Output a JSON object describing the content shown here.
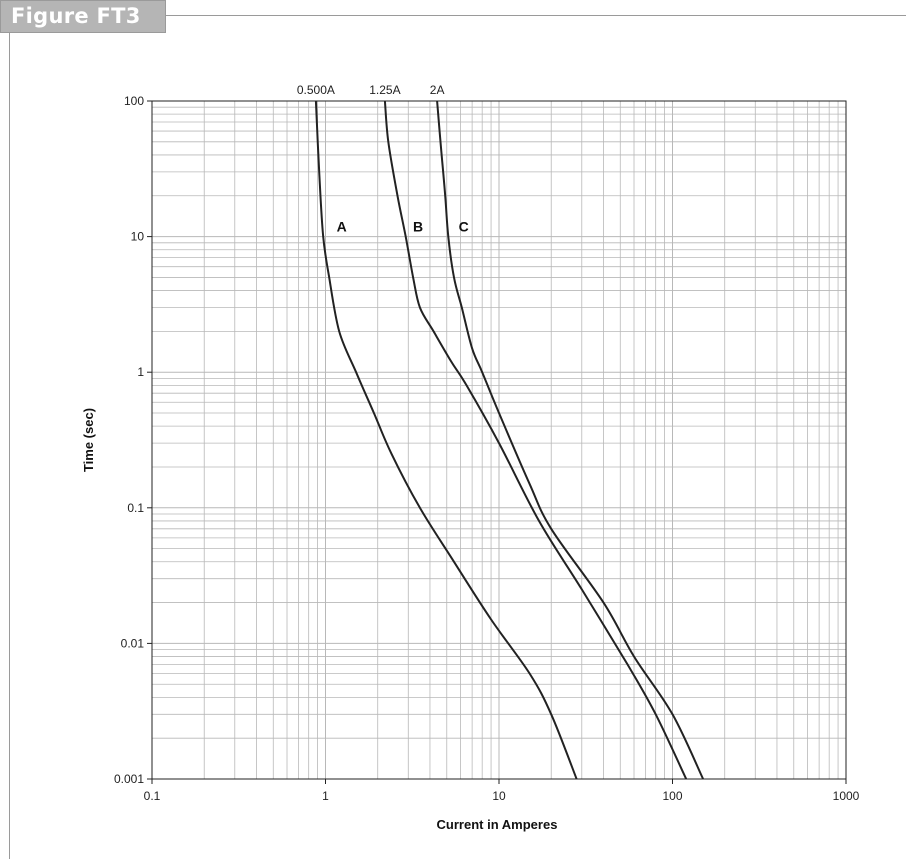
{
  "figure_label": "Figure FT3",
  "colors": {
    "tab_fill": "#b5b5b5",
    "rule": "#9a9a9a",
    "grid": "#b8b8b8",
    "curve": "#222222"
  },
  "chart_data": {
    "type": "line",
    "title": "",
    "xlabel": "Current in Amperes",
    "ylabel": "Time (sec)",
    "x_scale": "log",
    "y_scale": "log",
    "xlim": [
      0.1,
      1000
    ],
    "ylim": [
      0.001,
      100
    ],
    "grid": true,
    "x_ticks": [
      {
        "value": 0.1,
        "label": "0.1"
      },
      {
        "value": 1,
        "label": "1"
      },
      {
        "value": 10,
        "label": "10"
      },
      {
        "value": 100,
        "label": "100"
      },
      {
        "value": 1000,
        "label": "1000"
      }
    ],
    "y_ticks": [
      {
        "value": 100,
        "label": "100"
      },
      {
        "value": 10,
        "label": "10"
      },
      {
        "value": 1,
        "label": "1"
      },
      {
        "value": 0.1,
        "label": "0.1"
      },
      {
        "value": 0.01,
        "label": "0.01"
      },
      {
        "value": 0.001,
        "label": "0.001"
      }
    ],
    "series": [
      {
        "name": "A",
        "rating": "0.500A",
        "label_at": [
          1.07,
          10
        ],
        "points": [
          [
            0.88,
            100
          ],
          [
            0.92,
            30
          ],
          [
            0.97,
            10
          ],
          [
            1.05,
            5
          ],
          [
            1.2,
            2
          ],
          [
            1.5,
            1
          ],
          [
            1.9,
            0.5
          ],
          [
            2.4,
            0.25
          ],
          [
            3.5,
            0.1
          ],
          [
            5.5,
            0.04
          ],
          [
            9,
            0.015
          ],
          [
            15,
            0.006
          ],
          [
            20,
            0.003
          ],
          [
            28,
            0.001
          ]
        ]
      },
      {
        "name": "B",
        "rating": "1.25A",
        "label_at": [
          2.95,
          10
        ],
        "points": [
          [
            2.2,
            100
          ],
          [
            2.3,
            50
          ],
          [
            2.6,
            20
          ],
          [
            2.9,
            10
          ],
          [
            3.2,
            5
          ],
          [
            3.5,
            3
          ],
          [
            4.2,
            2
          ],
          [
            5.3,
            1.2
          ],
          [
            6.5,
            0.8
          ],
          [
            10,
            0.3
          ],
          [
            17,
            0.08
          ],
          [
            30,
            0.025
          ],
          [
            55,
            0.007
          ],
          [
            80,
            0.003
          ],
          [
            120,
            0.001
          ]
        ]
      },
      {
        "name": "C",
        "rating": "2A",
        "label_at": [
          5.4,
          10
        ],
        "points": [
          [
            4.4,
            100
          ],
          [
            4.6,
            50
          ],
          [
            4.9,
            20
          ],
          [
            5.1,
            10
          ],
          [
            5.5,
            5
          ],
          [
            6.1,
            3
          ],
          [
            7,
            1.5
          ],
          [
            8,
            1
          ],
          [
            10,
            0.5
          ],
          [
            15,
            0.15
          ],
          [
            20,
            0.07
          ],
          [
            40,
            0.02
          ],
          [
            60,
            0.008
          ],
          [
            100,
            0.003
          ],
          [
            150,
            0.001
          ]
        ]
      }
    ]
  }
}
